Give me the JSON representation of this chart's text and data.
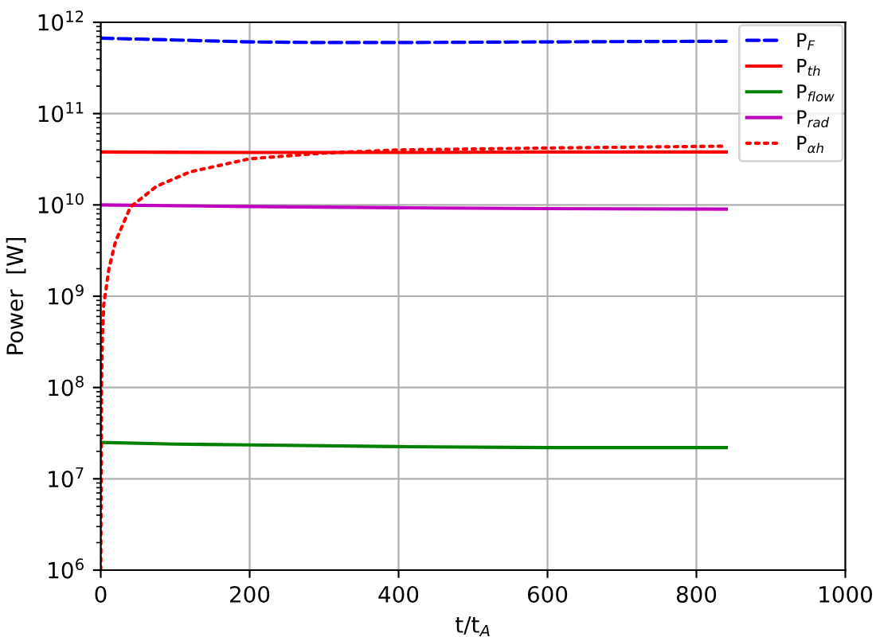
{
  "chart_data": {
    "type": "line",
    "xlabel": "t/t$_{A}$",
    "ylabel": "Power  [W]",
    "log": "y",
    "grid": true,
    "legend": "top right",
    "xlim": [
      0,
      1000
    ],
    "xticks": [
      0,
      200,
      400,
      600,
      800,
      1000
    ],
    "ylim": [
      1000000,
      1000000000000
    ],
    "yticks": [
      {
        "value": 1000000,
        "label": "10$^{6}$"
      },
      {
        "value": 10000000,
        "label": "10$^{7}$"
      },
      {
        "value": 100000000,
        "label": "10$^{8}$"
      },
      {
        "value": 1000000000,
        "label": "10$^{9}$"
      },
      {
        "value": 10000000000,
        "label": "10$^{10}$"
      },
      {
        "value": 100000000000,
        "label": "10$^{11}$"
      },
      {
        "value": 1000000000000,
        "label": "10$^{12}$"
      }
    ],
    "series": [
      {
        "name": "P$_{F}$",
        "color": "#0000ff",
        "line_style": "dashed",
        "x": [
          0,
          100,
          200,
          300,
          400,
          500,
          600,
          700,
          840
        ],
        "values": [
          670000000000,
          640000000000,
          610000000000,
          600000000000,
          600000000000,
          605000000000,
          610000000000,
          615000000000,
          620000000000
        ]
      },
      {
        "name": "P$_{th}$",
        "color": "#ff0000",
        "line_style": "solid",
        "x": [
          0,
          200,
          400,
          600,
          840
        ],
        "values": [
          38000000000,
          37500000000,
          37500000000,
          38000000000,
          38000000000
        ]
      },
      {
        "name": "P$_{flow}$",
        "color": "#008000",
        "line_style": "solid",
        "x": [
          0,
          100,
          200,
          400,
          600,
          840
        ],
        "values": [
          25000000,
          24000000,
          23500000,
          22500000,
          22000000,
          22000000
        ]
      },
      {
        "name": "P$_{rad}$",
        "color": "#bf00bf",
        "line_style": "solid",
        "x": [
          0,
          200,
          400,
          600,
          840
        ],
        "values": [
          10000000000,
          9600000000,
          9300000000,
          9100000000,
          9000000000
        ]
      },
      {
        "name": "P$_{αh}$",
        "color": "#ff0000",
        "line_style": "dotted",
        "x": [
          0,
          1,
          2,
          4,
          11,
          20,
          40,
          75,
          120,
          200,
          300,
          400,
          600,
          840
        ],
        "values": [
          1000000,
          100000000,
          300000000,
          800000000,
          2000000000,
          4000000000,
          9500000000,
          16000000000,
          23000000000,
          32000000000,
          37000000000,
          40000000000,
          42000000000,
          44000000000
        ]
      }
    ]
  }
}
